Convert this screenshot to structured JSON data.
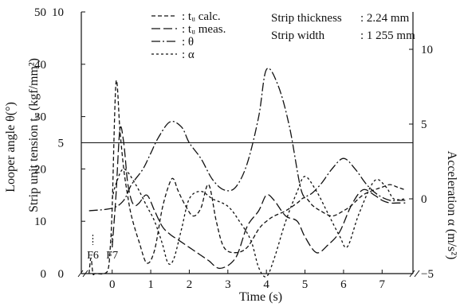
{
  "chart_data": {
    "type": "line",
    "title": "",
    "xlabel": "Time (s)",
    "ylabel_left_outer": "Looper angle θ(°)",
    "ylabel_left_inner": "Strip unit tension tᵤ (kgf/mm²)",
    "ylabel_right": "Acceleration α (m/s²)",
    "xlim": [
      -0.8,
      7.8
    ],
    "x_ticks": [
      0,
      1,
      2,
      3,
      4,
      5,
      6,
      7
    ],
    "x_tick_labels": [
      "0",
      "1",
      "2",
      "3",
      "4",
      "5",
      "6",
      "7"
    ],
    "y_theta": {
      "lim": [
        0,
        50
      ],
      "ticks": [
        0,
        10,
        20,
        30,
        40,
        50
      ],
      "labels": [
        "0",
        "10",
        "20",
        "30",
        "40",
        "50"
      ]
    },
    "y_tension": {
      "lim": [
        0,
        10
      ],
      "ticks": [
        0,
        5,
        10
      ],
      "labels": [
        "0",
        "5",
        "10"
      ]
    },
    "y_accel": {
      "lim": [
        -5,
        12.5
      ],
      "ticks": [
        -5,
        0,
        5,
        10
      ],
      "labels": [
        "−5",
        "0",
        "5",
        "10"
      ]
    },
    "reference_lines": [
      {
        "axis": "tension",
        "value": 0
      },
      {
        "axis": "tension",
        "value": 5
      }
    ],
    "stand_marks": [
      {
        "label": "F6",
        "x": -0.5
      },
      {
        "label": "F7",
        "x": 0.0
      }
    ],
    "legend": {
      "position": "top",
      "entries": [
        {
          "name": "tᵤ calc.",
          "style": "dashed"
        },
        {
          "name": "tᵤ meas.",
          "style": "long-dash"
        },
        {
          "name": "θ",
          "style": "dash-dot"
        },
        {
          "name": "α",
          "style": "dotted"
        }
      ]
    },
    "annotations": [
      {
        "label": "Strip thickness",
        "value": ": 2.24 mm"
      },
      {
        "label": "Strip width",
        "value": ": 1 255 mm"
      }
    ],
    "series": [
      {
        "name": "tᵤ calc.",
        "axis": "tension",
        "x": [
          -0.6,
          -0.55,
          -0.5,
          -0.45,
          -0.4,
          -0.2,
          -0.1,
          -0.05,
          0.0,
          0.1,
          0.2,
          0.3,
          0.4,
          0.5,
          0.7,
          0.9,
          1.1,
          1.3,
          1.5,
          1.6,
          1.7,
          1.9,
          2.1,
          2.3,
          2.5,
          2.7,
          2.9,
          3.2,
          3.5,
          3.8,
          4.0,
          4.2,
          4.5,
          4.8,
          5.0,
          5.2,
          5.4,
          5.7,
          6.0,
          6.2,
          6.5,
          6.8,
          7.0,
          7.2,
          7.4,
          7.6
        ],
        "values": [
          0,
          0.6,
          0,
          0,
          0,
          0,
          0.2,
          1.0,
          2.5,
          7.3,
          5.5,
          4.0,
          3.0,
          2.2,
          1.2,
          0.4,
          0.9,
          2.5,
          3.5,
          3.6,
          3.2,
          2.6,
          2.2,
          2.5,
          3.4,
          2.0,
          1.0,
          0.8,
          1.0,
          1.7,
          2.0,
          2.2,
          2.4,
          2.7,
          2.9,
          2.6,
          2.4,
          2.2,
          2.4,
          2.6,
          3.0,
          3.2,
          3.3,
          3.4,
          3.3,
          3.2
        ]
      },
      {
        "name": "tᵤ meas.",
        "axis": "tension",
        "x": [
          0.0,
          0.1,
          0.2,
          0.3,
          0.4,
          0.5,
          0.6,
          0.7,
          0.9,
          1.1,
          1.3,
          1.5,
          1.7,
          1.9,
          2.1,
          2.3,
          2.5,
          2.8,
          3.2,
          3.5,
          3.8,
          4.0,
          4.2,
          4.5,
          4.8,
          5.0,
          5.3,
          5.6,
          5.9,
          6.2,
          6.5,
          6.8,
          7.0,
          7.2,
          7.4,
          7.6
        ],
        "values": [
          1.0,
          3.0,
          5.5,
          5.0,
          3.5,
          2.8,
          2.6,
          2.7,
          3.0,
          2.4,
          1.8,
          1.5,
          1.3,
          1.1,
          0.9,
          0.7,
          0.5,
          0.2,
          0.6,
          1.8,
          2.4,
          3.0,
          2.8,
          2.2,
          2.0,
          1.4,
          0.8,
          1.1,
          1.6,
          2.6,
          3.2,
          3.0,
          2.8,
          2.7,
          2.7,
          2.7
        ]
      },
      {
        "name": "θ",
        "axis": "theta",
        "x": [
          -0.6,
          0.0,
          0.3,
          0.5,
          0.8,
          1.0,
          1.2,
          1.5,
          1.8,
          2.0,
          2.3,
          2.6,
          2.9,
          3.2,
          3.5,
          3.8,
          4.0,
          4.3,
          4.6,
          4.9,
          5.1,
          5.4,
          5.7,
          6.0,
          6.3,
          6.6,
          6.9,
          7.2,
          7.4,
          7.6
        ],
        "values": [
          12,
          12.5,
          14,
          17,
          20,
          23,
          26,
          29,
          28,
          25,
          22,
          18,
          16,
          16.5,
          21,
          30,
          39,
          36,
          28,
          16,
          15,
          17,
          20,
          22,
          20,
          17,
          15,
          14,
          14,
          14
        ]
      },
      {
        "name": "α",
        "axis": "accel",
        "x": [
          0.0,
          0.1,
          0.3,
          0.6,
          0.9,
          1.1,
          1.3,
          1.45,
          1.6,
          1.8,
          2.0,
          2.3,
          2.6,
          3.0,
          3.3,
          3.6,
          3.8,
          4.0,
          4.2,
          4.5,
          4.8,
          5.0,
          5.3,
          5.6,
          5.9,
          6.1,
          6.4,
          6.8,
          7.1,
          7.3,
          7.6
        ],
        "values": [
          0,
          1.0,
          2.0,
          1.0,
          -0.5,
          -1.5,
          -3.0,
          -4.3,
          -4.0,
          -2.0,
          0,
          0.5,
          0,
          -0.5,
          -1.5,
          -2.8,
          -4.6,
          -5.2,
          -4.0,
          -1.5,
          0.5,
          1.5,
          0.5,
          -1.0,
          -2.5,
          -3.2,
          -1.0,
          1.2,
          0.8,
          0,
          0
        ]
      }
    ]
  }
}
